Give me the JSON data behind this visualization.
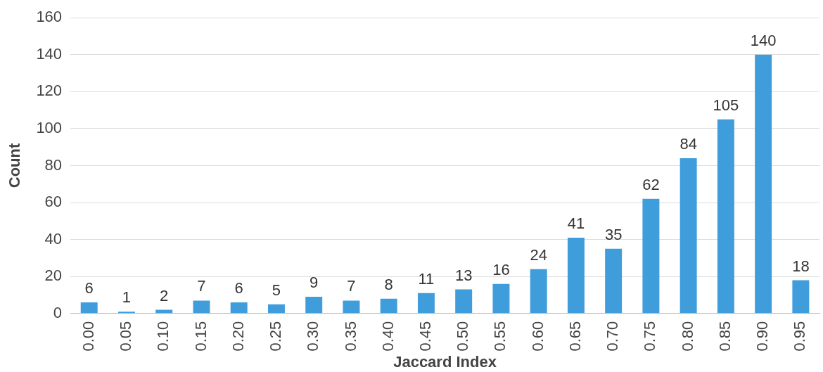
{
  "chart_data": {
    "type": "bar",
    "xlabel": "Jaccard Index",
    "ylabel": "Count",
    "categories": [
      "0.00",
      "0.05",
      "0.10",
      "0.15",
      "0.20",
      "0.25",
      "0.30",
      "0.35",
      "0.40",
      "0.45",
      "0.50",
      "0.55",
      "0.60",
      "0.65",
      "0.70",
      "0.75",
      "0.80",
      "0.85",
      "0.90",
      "0.95"
    ],
    "values": [
      6,
      1,
      2,
      7,
      6,
      5,
      9,
      7,
      8,
      11,
      13,
      16,
      24,
      41,
      35,
      62,
      84,
      105,
      140,
      18
    ],
    "color": "#3f9ddb",
    "ylim": [
      0,
      160
    ],
    "yticks": [
      0,
      20,
      40,
      60,
      80,
      100,
      120,
      140,
      160
    ],
    "grid": "y",
    "data_labels": true,
    "legend": false
  }
}
